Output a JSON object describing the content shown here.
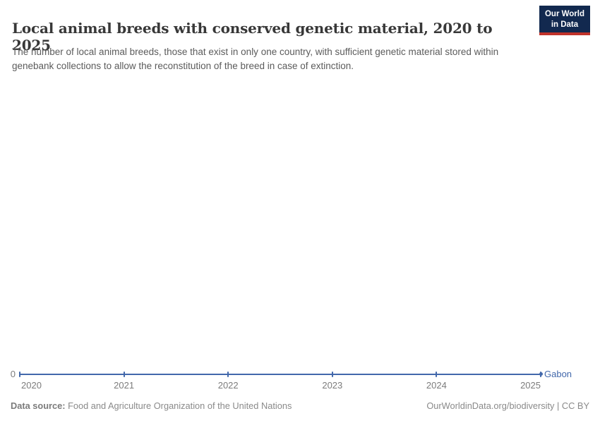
{
  "header": {
    "title": "Local animal breeds with conserved genetic material, 2020 to 2025",
    "subtitle": "The number of local animal breeds, those that exist in only one country, with sufficient genetic material stored within genebank collections to allow the reconstitution of the breed in case of extinction."
  },
  "logo": {
    "line1": "Our World",
    "line2": "in Data",
    "bg_color": "#12294f",
    "accent_color": "#c0332b"
  },
  "chart": {
    "y_zero_label": "0"
  },
  "chart_data": {
    "type": "line",
    "title": "Local animal breeds with conserved genetic material, 2020 to 2025",
    "x": [
      "2020",
      "2021",
      "2022",
      "2023",
      "2024",
      "2025"
    ],
    "series": [
      {
        "name": "Gabon",
        "values": [
          0,
          0,
          0,
          0,
          0,
          0
        ],
        "color": "#4268ab"
      }
    ],
    "xlabel": "",
    "ylabel": "",
    "ylim": [
      0,
      1
    ],
    "y_ticks_shown": [
      "0"
    ],
    "grid": false,
    "legend_position": "end-of-line"
  },
  "footer": {
    "source_label": "Data source:",
    "source_text": " Food and Agriculture Organization of the United Nations",
    "attribution": "OurWorldinData.org/biodiversity | CC BY"
  }
}
